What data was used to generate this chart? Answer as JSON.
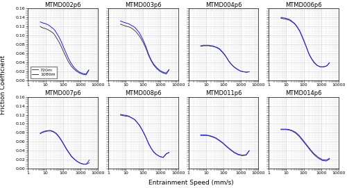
{
  "titles": [
    "MTMD002p6",
    "MTMD003p6",
    "MTMD004p6",
    "MTMD006p6",
    "MTMD007p6",
    "MTMD008p6",
    "MTMD011p6",
    "MTMD014p6"
  ],
  "color_720": "#404040",
  "color_1080": "#1a1aff",
  "legend_labels": [
    "720m",
    "1080m"
  ],
  "xlabel": "Entrainment Speed (mm/s)",
  "ylabel": "Friction Coefficient",
  "ylim": [
    0,
    0.16
  ],
  "xlim": [
    1,
    10000
  ],
  "subplot_rows": 2,
  "subplot_cols": 4,
  "figsize": [
    5.0,
    2.71
  ],
  "dpi": 100,
  "curves": {
    "MTMD002p6": {
      "720m_x": [
        5,
        6,
        7,
        8,
        9,
        10,
        12,
        15,
        18,
        22,
        28,
        35,
        45,
        60,
        80,
        110,
        150,
        200,
        280,
        400,
        600,
        900,
        1400,
        2100,
        3000
      ],
      "720m_y": [
        0.12,
        0.118,
        0.117,
        0.116,
        0.116,
        0.115,
        0.114,
        0.112,
        0.11,
        0.108,
        0.105,
        0.1,
        0.093,
        0.085,
        0.075,
        0.063,
        0.052,
        0.042,
        0.033,
        0.026,
        0.02,
        0.016,
        0.013,
        0.012,
        0.022
      ],
      "1080m_x": [
        5,
        6,
        7,
        8,
        9,
        10,
        12,
        15,
        18,
        22,
        28,
        35,
        45,
        60,
        80,
        110,
        150,
        200,
        280,
        400,
        600,
        900,
        1400,
        2100,
        3000
      ],
      "1080m_y": [
        0.13,
        0.129,
        0.128,
        0.127,
        0.127,
        0.126,
        0.125,
        0.123,
        0.121,
        0.118,
        0.115,
        0.111,
        0.104,
        0.096,
        0.086,
        0.073,
        0.061,
        0.05,
        0.039,
        0.03,
        0.023,
        0.018,
        0.015,
        0.014,
        0.023
      ]
    },
    "MTMD003p6": {
      "720m_x": [
        5,
        6,
        7,
        8,
        10,
        12,
        15,
        18,
        22,
        28,
        35,
        45,
        60,
        80,
        110,
        150,
        200,
        280,
        400,
        600,
        900,
        1400,
        2100,
        3000
      ],
      "720m_y": [
        0.125,
        0.124,
        0.123,
        0.122,
        0.121,
        0.12,
        0.119,
        0.118,
        0.116,
        0.113,
        0.11,
        0.105,
        0.099,
        0.091,
        0.081,
        0.069,
        0.056,
        0.044,
        0.034,
        0.026,
        0.02,
        0.016,
        0.014,
        0.023
      ],
      "1080m_x": [
        5,
        6,
        7,
        8,
        10,
        12,
        15,
        18,
        22,
        28,
        35,
        45,
        60,
        80,
        110,
        150,
        200,
        280,
        400,
        600,
        900,
        1400,
        2100,
        3000
      ],
      "1080m_y": [
        0.132,
        0.131,
        0.13,
        0.129,
        0.128,
        0.127,
        0.126,
        0.124,
        0.122,
        0.12,
        0.117,
        0.112,
        0.106,
        0.097,
        0.086,
        0.073,
        0.059,
        0.046,
        0.036,
        0.028,
        0.022,
        0.018,
        0.016,
        0.024
      ]
    },
    "MTMD004p6": {
      "720m_x": [
        5,
        6,
        7,
        8,
        10,
        12,
        15,
        18,
        22,
        28,
        35,
        45,
        60,
        80,
        110,
        150,
        200,
        280,
        400,
        600,
        900,
        1400,
        2100,
        3000
      ],
      "720m_y": [
        0.076,
        0.076,
        0.077,
        0.077,
        0.077,
        0.077,
        0.077,
        0.076,
        0.076,
        0.075,
        0.074,
        0.072,
        0.069,
        0.064,
        0.058,
        0.051,
        0.043,
        0.036,
        0.03,
        0.025,
        0.021,
        0.019,
        0.018,
        0.019
      ],
      "1080m_x": [
        5,
        6,
        7,
        8,
        10,
        12,
        15,
        18,
        22,
        28,
        35,
        45,
        60,
        80,
        110,
        150,
        200,
        280,
        400,
        600,
        900,
        1400,
        2100,
        3000
      ],
      "1080m_y": [
        0.077,
        0.077,
        0.078,
        0.078,
        0.078,
        0.078,
        0.078,
        0.077,
        0.077,
        0.076,
        0.074,
        0.073,
        0.07,
        0.065,
        0.059,
        0.051,
        0.043,
        0.036,
        0.03,
        0.025,
        0.021,
        0.019,
        0.018,
        0.019
      ]
    },
    "MTMD006p6": {
      "720m_x": [
        5,
        6,
        7,
        8,
        10,
        12,
        15,
        18,
        22,
        28,
        35,
        45,
        60,
        80,
        110,
        150,
        200,
        280,
        400,
        600,
        900,
        1400,
        2100,
        3000
      ],
      "720m_y": [
        0.138,
        0.138,
        0.137,
        0.137,
        0.136,
        0.135,
        0.134,
        0.132,
        0.13,
        0.127,
        0.123,
        0.117,
        0.109,
        0.098,
        0.085,
        0.072,
        0.059,
        0.048,
        0.039,
        0.033,
        0.03,
        0.03,
        0.032,
        0.039
      ],
      "1080m_x": [
        5,
        6,
        7,
        8,
        10,
        12,
        15,
        18,
        22,
        28,
        35,
        45,
        60,
        80,
        110,
        150,
        200,
        280,
        400,
        600,
        900,
        1400,
        2100,
        3000
      ],
      "1080m_y": [
        0.14,
        0.14,
        0.139,
        0.139,
        0.138,
        0.137,
        0.136,
        0.134,
        0.131,
        0.128,
        0.124,
        0.118,
        0.11,
        0.099,
        0.086,
        0.072,
        0.059,
        0.049,
        0.04,
        0.033,
        0.03,
        0.03,
        0.032,
        0.039
      ]
    },
    "MTMD007p6": {
      "720m_x": [
        5,
        7,
        10,
        15,
        20,
        28,
        40,
        55,
        80,
        110,
        160,
        220,
        320,
        450,
        650,
        1000,
        1500,
        2200,
        3200
      ],
      "720m_y": [
        0.079,
        0.082,
        0.084,
        0.085,
        0.085,
        0.083,
        0.079,
        0.073,
        0.064,
        0.055,
        0.044,
        0.036,
        0.027,
        0.021,
        0.016,
        0.012,
        0.01,
        0.01,
        0.013
      ],
      "1080m_x": [
        5,
        7,
        10,
        15,
        20,
        28,
        40,
        55,
        80,
        110,
        160,
        220,
        320,
        450,
        650,
        1000,
        1500,
        2200,
        3200
      ],
      "1080m_y": [
        0.078,
        0.081,
        0.083,
        0.084,
        0.084,
        0.082,
        0.078,
        0.072,
        0.063,
        0.054,
        0.043,
        0.035,
        0.026,
        0.021,
        0.016,
        0.012,
        0.01,
        0.01,
        0.019
      ]
    },
    "MTMD008p6": {
      "720m_x": [
        5,
        6,
        7,
        8,
        10,
        12,
        15,
        18,
        22,
        28,
        35,
        45,
        60,
        80,
        110,
        150,
        200,
        280,
        400,
        600,
        900,
        1400,
        2100,
        3000
      ],
      "720m_y": [
        0.119,
        0.119,
        0.118,
        0.118,
        0.117,
        0.117,
        0.116,
        0.115,
        0.113,
        0.111,
        0.108,
        0.103,
        0.097,
        0.089,
        0.079,
        0.068,
        0.056,
        0.046,
        0.037,
        0.031,
        0.027,
        0.025,
        0.033,
        0.036
      ],
      "1080m_x": [
        5,
        6,
        7,
        8,
        10,
        12,
        15,
        18,
        22,
        28,
        35,
        45,
        60,
        80,
        110,
        150,
        200,
        280,
        400,
        600,
        900,
        1400,
        2100,
        3000
      ],
      "1080m_y": [
        0.121,
        0.12,
        0.12,
        0.119,
        0.119,
        0.118,
        0.117,
        0.115,
        0.113,
        0.111,
        0.108,
        0.103,
        0.097,
        0.089,
        0.079,
        0.068,
        0.057,
        0.046,
        0.037,
        0.031,
        0.027,
        0.025,
        0.033,
        0.036
      ]
    },
    "MTMD011p6": {
      "720m_x": [
        5,
        7,
        10,
        15,
        22,
        35,
        55,
        90,
        150,
        250,
        400,
        700,
        1200,
        2000,
        3000
      ],
      "720m_y": [
        0.074,
        0.074,
        0.074,
        0.073,
        0.071,
        0.068,
        0.063,
        0.057,
        0.049,
        0.042,
        0.036,
        0.031,
        0.029,
        0.03,
        0.04
      ],
      "1080m_x": [
        5,
        7,
        10,
        15,
        22,
        35,
        55,
        90,
        150,
        250,
        400,
        700,
        1200,
        2000,
        3000
      ],
      "1080m_y": [
        0.075,
        0.075,
        0.075,
        0.074,
        0.072,
        0.069,
        0.064,
        0.058,
        0.05,
        0.043,
        0.037,
        0.032,
        0.03,
        0.031,
        0.04
      ]
    },
    "MTMD014p6": {
      "720m_x": [
        5,
        7,
        10,
        15,
        22,
        35,
        55,
        90,
        150,
        250,
        400,
        700,
        1200,
        2000,
        3000
      ],
      "720m_y": [
        0.087,
        0.087,
        0.087,
        0.086,
        0.084,
        0.079,
        0.072,
        0.062,
        0.051,
        0.04,
        0.031,
        0.023,
        0.018,
        0.017,
        0.021
      ],
      "1080m_x": [
        5,
        7,
        10,
        15,
        22,
        35,
        55,
        90,
        150,
        250,
        400,
        700,
        1200,
        2000,
        3000
      ],
      "1080m_y": [
        0.088,
        0.088,
        0.088,
        0.087,
        0.085,
        0.081,
        0.074,
        0.064,
        0.053,
        0.042,
        0.033,
        0.025,
        0.02,
        0.019,
        0.023
      ]
    }
  }
}
